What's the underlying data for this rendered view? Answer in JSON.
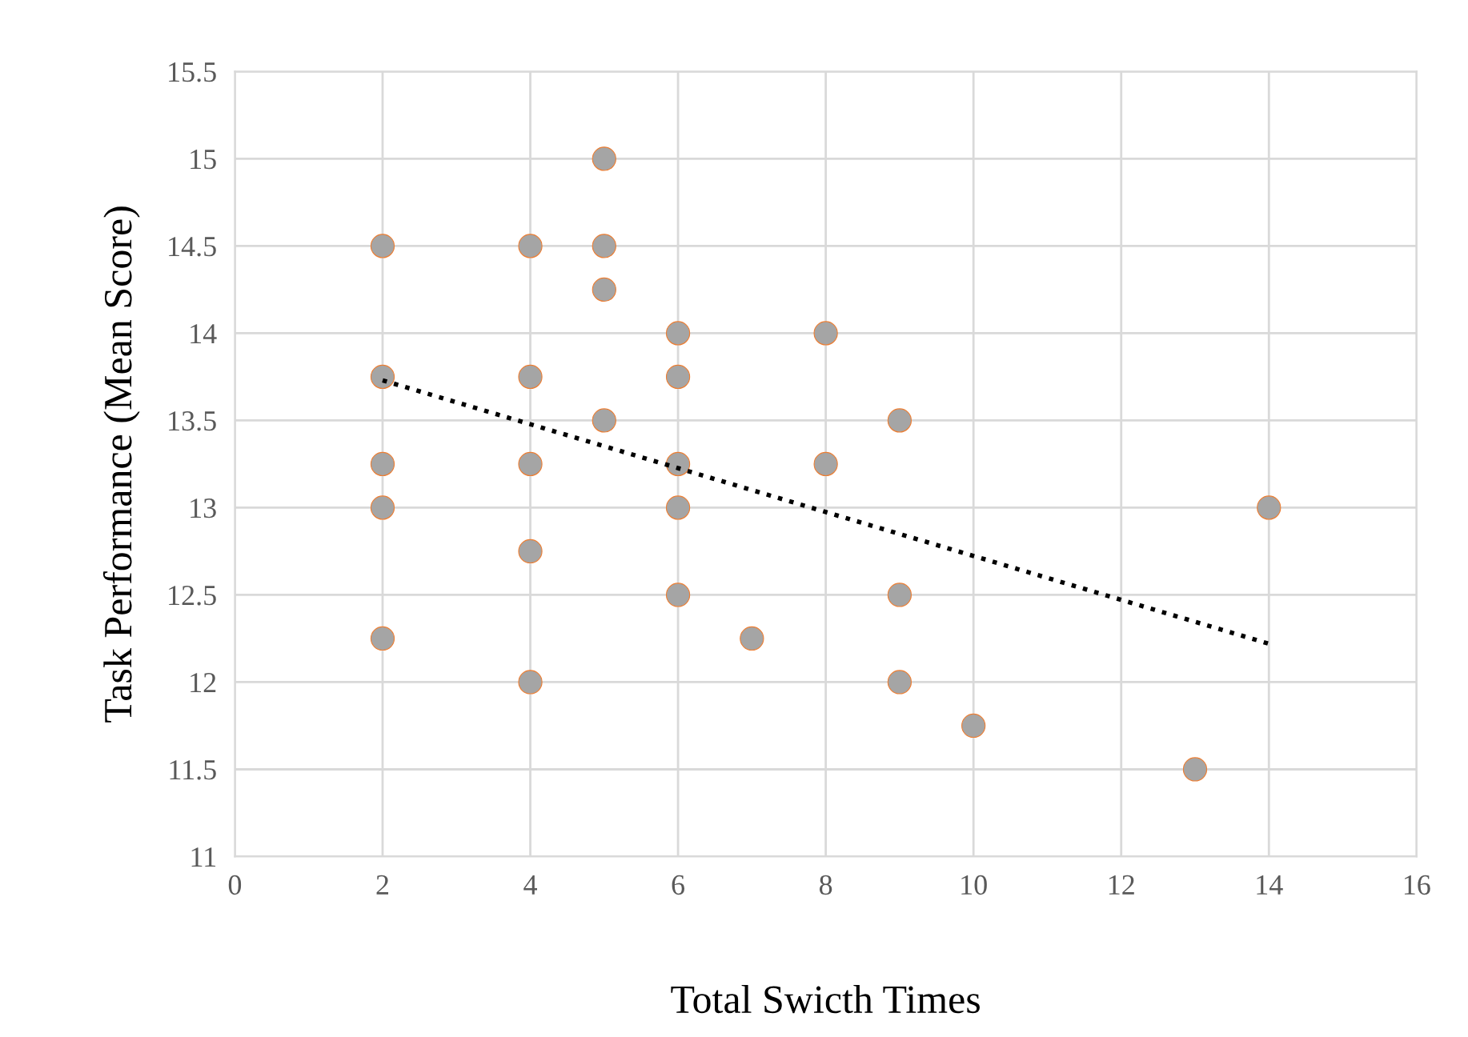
{
  "chart_data": {
    "type": "scatter",
    "xlabel": "Total Swicth Times",
    "ylabel": "Task Performance (Mean Score)",
    "xlim": [
      0,
      16
    ],
    "xticks": [
      0,
      2,
      4,
      6,
      8,
      10,
      12,
      14,
      16
    ],
    "ylim": [
      11,
      15.5
    ],
    "yticks": [
      11,
      11.5,
      12,
      12.5,
      13,
      13.5,
      14,
      14.5,
      15,
      15.5
    ],
    "grid": true,
    "series": [
      {
        "marker": "circle",
        "color": "#a5a5a5",
        "x": [
          2,
          2,
          2,
          2,
          2,
          4,
          4,
          4,
          4,
          4,
          5,
          5,
          5,
          5,
          6,
          6,
          6,
          6,
          6,
          7,
          8,
          8,
          9,
          9,
          9,
          10,
          13,
          14
        ],
        "values": [
          14.5,
          13.75,
          13.25,
          13.0,
          12.25,
          14.5,
          13.75,
          13.25,
          12.75,
          12.0,
          15,
          14.5,
          14.25,
          13.5,
          14,
          13.75,
          13.25,
          13.0,
          12.5,
          12.25,
          14,
          13.25,
          13.5,
          12.5,
          12.0,
          11.75,
          11.5,
          13
        ]
      },
      {
        "type": "line",
        "color": "#000000",
        "line_style": "dotted",
        "marker": "none",
        "x": [
          2,
          14
        ],
        "values": [
          13.73,
          12.22
        ]
      }
    ]
  }
}
